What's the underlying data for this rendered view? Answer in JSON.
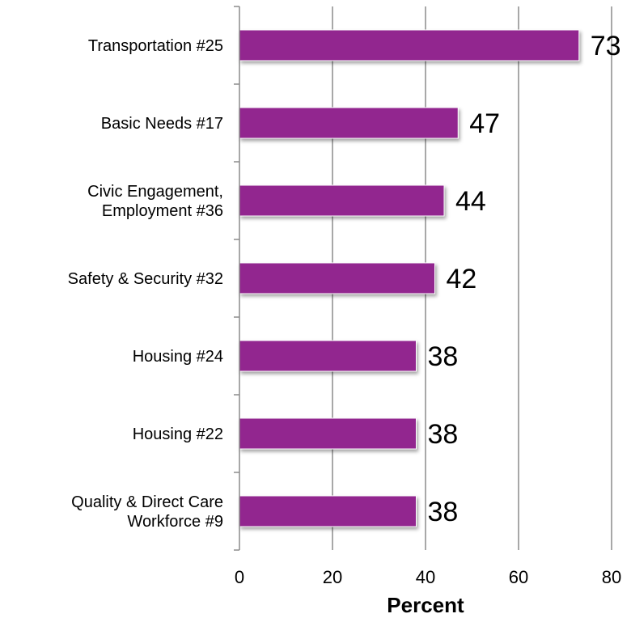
{
  "chart_data": {
    "type": "bar",
    "orientation": "horizontal",
    "categories": [
      "Transportation #25",
      "Basic Needs #17",
      "Civic Engagement,\nEmployment #36",
      "Safety & Security #32",
      "Housing #24",
      "Housing #22",
      "Quality & Direct Care\nWorkforce #9"
    ],
    "values": [
      73,
      47,
      44,
      42,
      38,
      38,
      38
    ],
    "data_labels": [
      "73",
      "47",
      "44",
      "42",
      "38",
      "38",
      "38"
    ],
    "title": "",
    "xlabel": "Percent",
    "ylabel": "",
    "xlim": [
      0,
      80
    ],
    "x_ticks": [
      "0",
      "20",
      "40",
      "60",
      "80"
    ],
    "grid": "vertical",
    "legend": "none",
    "bar_color": "#92278F"
  }
}
